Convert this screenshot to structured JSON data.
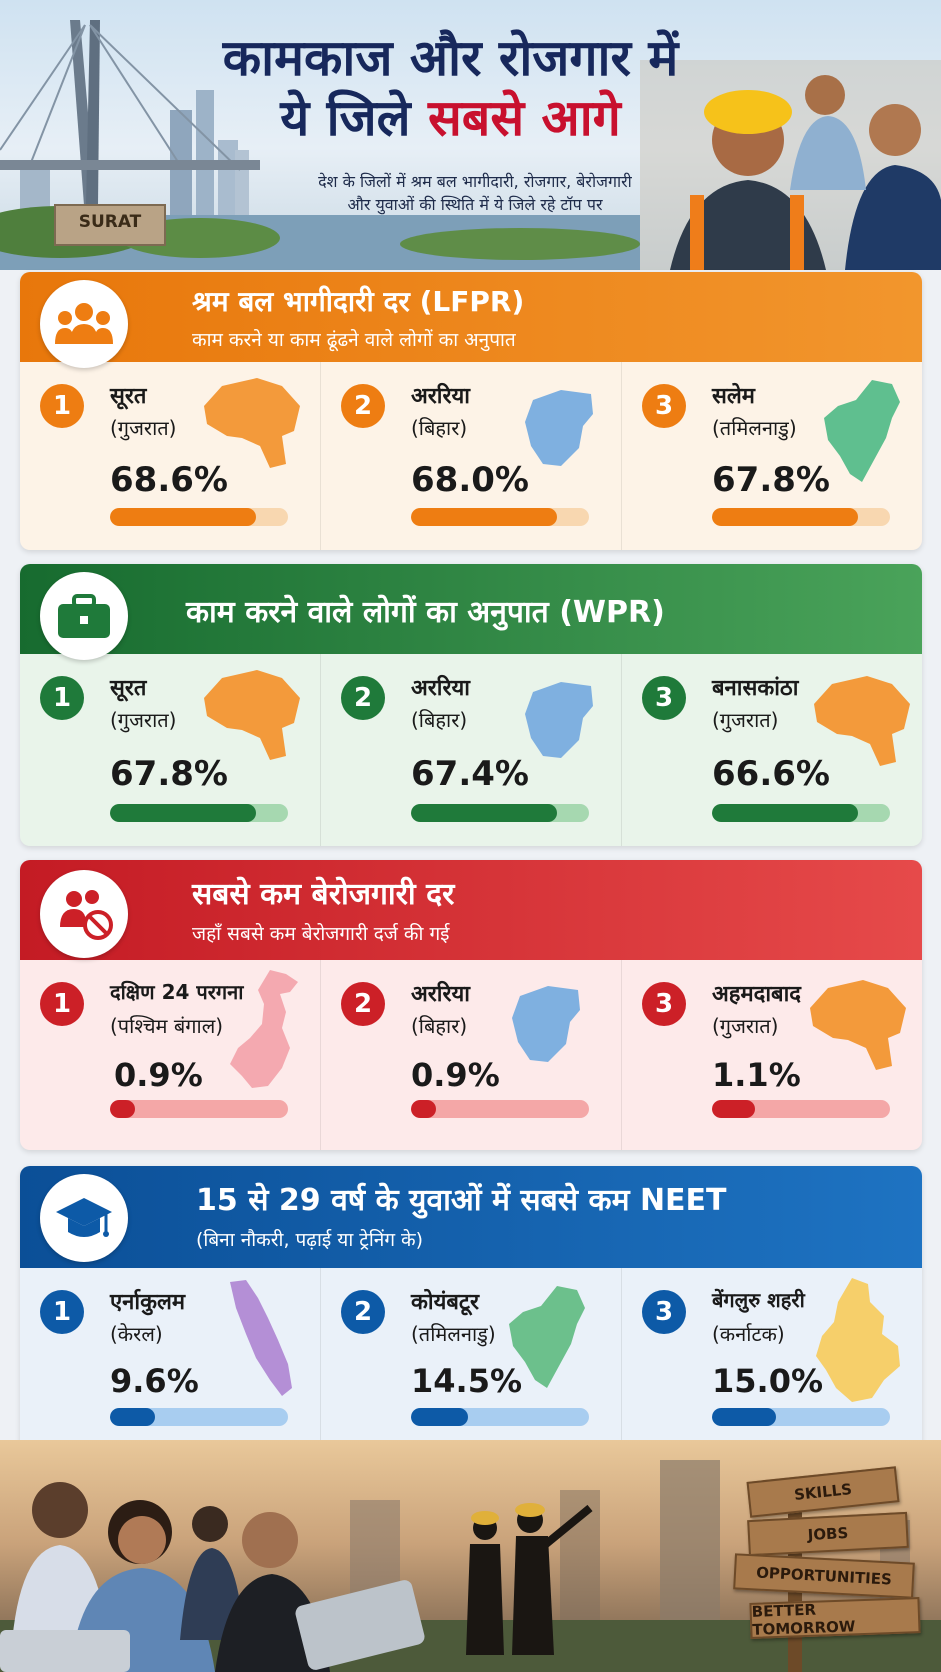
{
  "header": {
    "title_line1": "कामकाज और रोजगार में",
    "title_line2_a": "ये जिले ",
    "title_line2_b": "सबसे आगे",
    "subtitle_line1": "देश के जिलों में श्रम बल भागीदारी, रोजगार, बेरोजगारी",
    "subtitle_line2": "और युवाओं की स्थिति में ये जिले रहे टॉप पर",
    "sign_text": "SURAT"
  },
  "sections": [
    {
      "title": "श्रम बल भागीदारी दर (LFPR)",
      "subtitle": "काम करने या काम ढूंढने वाले लोगों का अनुपात",
      "icon": "people-group-icon",
      "color": "#ee7d12",
      "items": [
        {
          "rank": "1",
          "name": "सूरत",
          "state": "(गुजरात)",
          "value": "68.6%",
          "fill": 0.82,
          "map_color": "#f39a3b"
        },
        {
          "rank": "2",
          "name": "अररिया",
          "state": "(बिहार)",
          "value": "68.0%",
          "fill": 0.82,
          "map_color": "#7fb0e0"
        },
        {
          "rank": "3",
          "name": "सलेम",
          "state": "(तमिलनाडु)",
          "value": "67.8%",
          "fill": 0.82,
          "map_color": "#5fbf8f"
        }
      ]
    },
    {
      "title": "काम करने वाले लोगों का अनुपात (WPR)",
      "subtitle": "",
      "icon": "briefcase-icon",
      "color": "#1f7a3a",
      "items": [
        {
          "rank": "1",
          "name": "सूरत",
          "state": "(गुजरात)",
          "value": "67.8%",
          "fill": 0.82,
          "map_color": "#f39a3b"
        },
        {
          "rank": "2",
          "name": "अररिया",
          "state": "(बिहार)",
          "value": "67.4%",
          "fill": 0.82,
          "map_color": "#7fb0e0"
        },
        {
          "rank": "3",
          "name": "बनासकांठा",
          "state": "(गुजरात)",
          "value": "66.6%",
          "fill": 0.82,
          "map_color": "#f39a3b"
        }
      ]
    },
    {
      "title": "सबसे कम बेरोजगारी दर",
      "subtitle": "जहाँ सबसे कम बेरोजगारी दर्ज की गई",
      "icon": "people-unemployed-icon",
      "color": "#cc2027",
      "items": [
        {
          "rank": "1",
          "name": "दक्षिण 24 परगना",
          "state": "(पश्चिम बंगाल)",
          "value": "0.9%",
          "fill": 0.14,
          "map_color": "#f4a9b0"
        },
        {
          "rank": "2",
          "name": "अररिया",
          "state": "(बिहार)",
          "value": "0.9%",
          "fill": 0.14,
          "map_color": "#7fb0e0"
        },
        {
          "rank": "3",
          "name": "अहमदाबाद",
          "state": "(गुजरात)",
          "value": "1.1%",
          "fill": 0.24,
          "map_color": "#f39a3b"
        }
      ]
    },
    {
      "title": "15 से 29 वर्ष के युवाओं में सबसे कम NEET",
      "subtitle": "(बिना नौकरी, पढ़ाई या ट्रेनिंग के)",
      "icon": "graduation-cap-icon",
      "color": "#0d5aa7",
      "items": [
        {
          "rank": "1",
          "name": "एर्नाकुलम",
          "state": "(केरल)",
          "value": "9.6%",
          "fill": 0.25,
          "map_color": "#b48fd6"
        },
        {
          "rank": "2",
          "name": "कोयंबटूर",
          "state": "(तमिलनाडु)",
          "value": "14.5%",
          "fill": 0.32,
          "map_color": "#6cc08c"
        },
        {
          "rank": "3",
          "name": "बेंगलुरु शहरी",
          "state": "(कर्नाटक)",
          "value": "15.0%",
          "fill": 0.36,
          "map_color": "#f6cf6a"
        }
      ]
    }
  ],
  "footer": {
    "signs": [
      "SKILLS",
      "JOBS",
      "OPPORTUNITIES",
      "BETTER TOMORROW"
    ]
  }
}
